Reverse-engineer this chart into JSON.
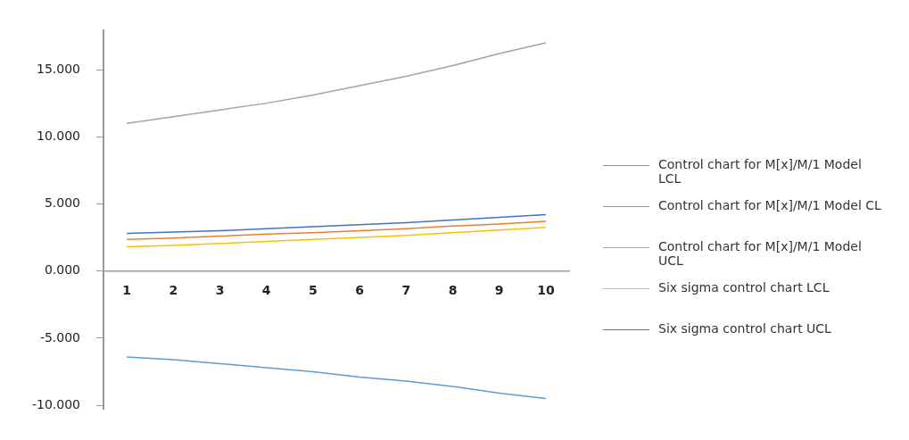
{
  "chart_data": {
    "type": "line",
    "categories": [
      "1",
      "2",
      "3",
      "4",
      "5",
      "6",
      "7",
      "8",
      "9",
      "10"
    ],
    "series": [
      {
        "name": "Control chart for M[x]/M/1  Model LCL",
        "color": "#5b9bd5",
        "values": [
          -6.4,
          -6.6,
          -6.9,
          -7.2,
          -7.5,
          -7.9,
          -8.2,
          -8.6,
          -9.1,
          -9.5
        ]
      },
      {
        "name": "Control chart for M[x]/M/1  Model CL",
        "color": "#ed7d31",
        "values": [
          2.35,
          2.45,
          2.6,
          2.75,
          2.85,
          3.0,
          3.15,
          3.35,
          3.5,
          3.7
        ]
      },
      {
        "name": "Control chart for M[x]/M/1  Model UCL",
        "color": "#a5a5a5",
        "values": [
          11.0,
          11.5,
          12.0,
          12.5,
          13.1,
          13.8,
          14.5,
          15.3,
          16.2,
          17.0
        ]
      },
      {
        "name": "Six sigma control chart LCL",
        "color": "#ffc000",
        "values": [
          1.8,
          1.9,
          2.05,
          2.2,
          2.35,
          2.5,
          2.65,
          2.85,
          3.05,
          3.25
        ]
      },
      {
        "name": "Six sigma control chart UCL",
        "color": "#4472c4",
        "values": [
          2.8,
          2.9,
          3.0,
          3.15,
          3.3,
          3.45,
          3.6,
          3.8,
          4.0,
          4.2
        ]
      }
    ],
    "ylim": [
      -10.3,
      17.9
    ],
    "yticks": [
      {
        "value": -10,
        "label": "-10.000"
      },
      {
        "value": -5,
        "label": "-5.000"
      },
      {
        "value": 0,
        "label": "0.000"
      },
      {
        "value": 5,
        "label": "5.000"
      },
      {
        "value": 10,
        "label": "10.000"
      },
      {
        "value": 15,
        "label": "15.000"
      }
    ],
    "grid": false,
    "legend": "right",
    "marker": "none"
  }
}
